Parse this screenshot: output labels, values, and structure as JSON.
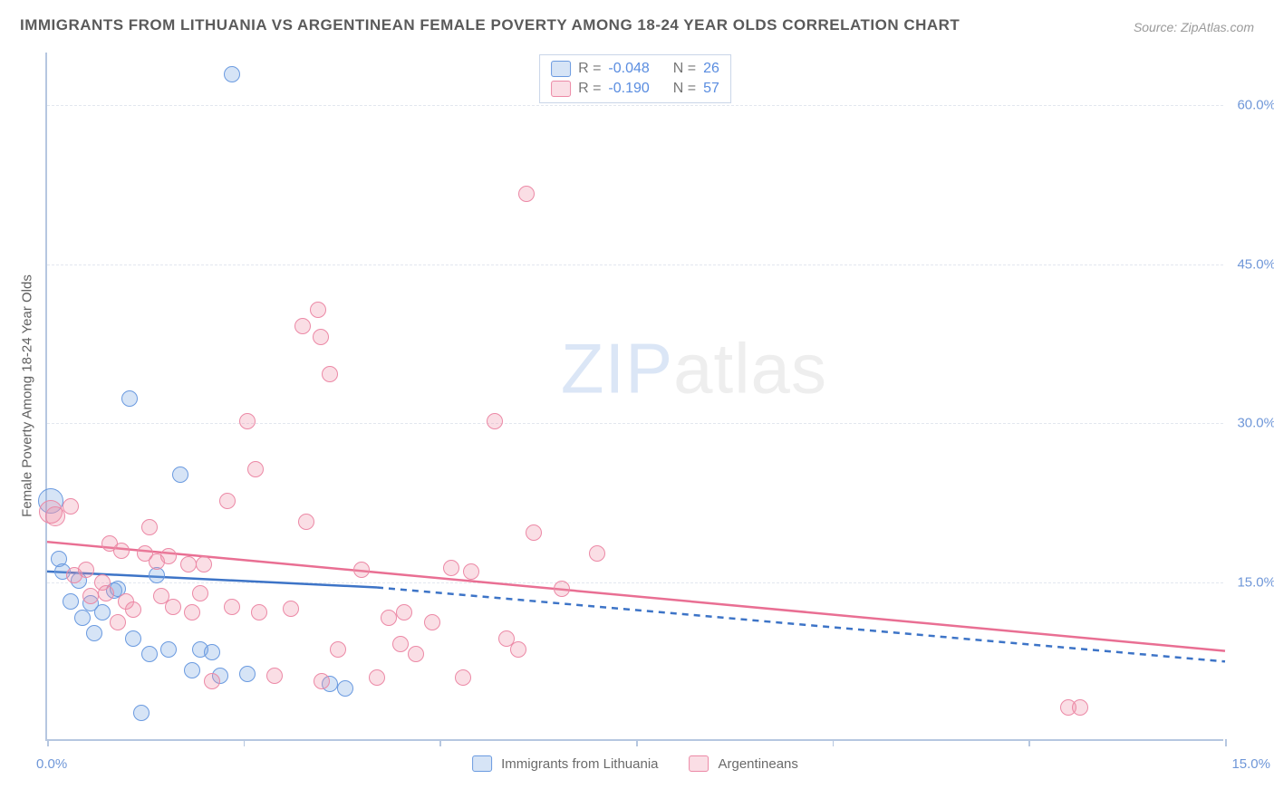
{
  "title": "IMMIGRANTS FROM LITHUANIA VS ARGENTINEAN FEMALE POVERTY AMONG 18-24 YEAR OLDS CORRELATION CHART",
  "source": "Source: ZipAtlas.com",
  "y_axis_title": "Female Poverty Among 18-24 Year Olds",
  "watermark_zip": "ZIP",
  "watermark_atlas": "atlas",
  "chart": {
    "type": "scatter",
    "background_color": "#ffffff",
    "axis_color": "#b6c7e0",
    "grid_color": "#e2e7ef",
    "tick_label_color": "#6f97d8",
    "xlim": [
      0,
      15
    ],
    "ylim": [
      0,
      65
    ],
    "x_ticks": [
      0,
      2.5,
      5,
      7.5,
      10,
      12.5,
      15
    ],
    "x_tick_labels": {
      "0": "0.0%",
      "15": "15.0%"
    },
    "y_gridlines": [
      15,
      30,
      45,
      60
    ],
    "y_tick_labels": {
      "15": "15.0%",
      "30": "30.0%",
      "45": "45.0%",
      "60": "60.0%"
    },
    "point_radius": 9,
    "point_stroke_width": 1.5,
    "point_fill_opacity": 0.25,
    "series": [
      {
        "name": "Immigrants from Lithuania",
        "color_fill": "rgba(120,165,225,0.30)",
        "color_stroke": "#6a9ae0",
        "trend_color": "#3d74c7",
        "R": "-0.048",
        "N": "26",
        "trend": {
          "x1": 0,
          "y1": 16.0,
          "x2": 4.2,
          "y2": 14.5,
          "dash_to_x": 15,
          "dash_to_y": 7.5
        },
        "points": [
          {
            "x": 0.05,
            "y": 22.5,
            "r": 14
          },
          {
            "x": 0.15,
            "y": 17.0
          },
          {
            "x": 0.2,
            "y": 15.8
          },
          {
            "x": 0.4,
            "y": 15.0
          },
          {
            "x": 0.45,
            "y": 11.5
          },
          {
            "x": 0.55,
            "y": 12.8
          },
          {
            "x": 0.6,
            "y": 10.0
          },
          {
            "x": 0.85,
            "y": 14.0
          },
          {
            "x": 0.9,
            "y": 14.2
          },
          {
            "x": 1.05,
            "y": 32.2
          },
          {
            "x": 1.1,
            "y": 9.5
          },
          {
            "x": 1.3,
            "y": 8.0
          },
          {
            "x": 1.4,
            "y": 15.5
          },
          {
            "x": 1.55,
            "y": 8.5
          },
          {
            "x": 1.7,
            "y": 25.0
          },
          {
            "x": 1.85,
            "y": 6.5
          },
          {
            "x": 1.95,
            "y": 8.5
          },
          {
            "x": 2.1,
            "y": 8.2
          },
          {
            "x": 2.2,
            "y": 6.0
          },
          {
            "x": 2.35,
            "y": 62.8
          },
          {
            "x": 1.2,
            "y": 2.5
          },
          {
            "x": 0.3,
            "y": 13.0
          },
          {
            "x": 0.7,
            "y": 12.0
          },
          {
            "x": 3.6,
            "y": 5.2
          },
          {
            "x": 3.8,
            "y": 4.8
          },
          {
            "x": 2.55,
            "y": 6.2
          }
        ]
      },
      {
        "name": "Argentineans",
        "color_fill": "rgba(240,145,170,0.30)",
        "color_stroke": "#ec89a6",
        "trend_color": "#e96f93",
        "R": "-0.190",
        "N": "57",
        "trend": {
          "x1": 0,
          "y1": 18.8,
          "x2": 15,
          "y2": 8.5
        },
        "points": [
          {
            "x": 0.05,
            "y": 21.5,
            "r": 13
          },
          {
            "x": 0.1,
            "y": 21.0,
            "r": 11
          },
          {
            "x": 0.3,
            "y": 22.0
          },
          {
            "x": 0.35,
            "y": 15.5
          },
          {
            "x": 0.5,
            "y": 16.0
          },
          {
            "x": 0.55,
            "y": 13.5
          },
          {
            "x": 0.7,
            "y": 14.8
          },
          {
            "x": 0.75,
            "y": 13.8
          },
          {
            "x": 0.8,
            "y": 18.5
          },
          {
            "x": 0.95,
            "y": 17.8
          },
          {
            "x": 1.0,
            "y": 13.0
          },
          {
            "x": 1.1,
            "y": 12.2
          },
          {
            "x": 1.25,
            "y": 17.5
          },
          {
            "x": 1.3,
            "y": 20.0
          },
          {
            "x": 1.4,
            "y": 16.8
          },
          {
            "x": 1.55,
            "y": 17.3
          },
          {
            "x": 1.6,
            "y": 12.5
          },
          {
            "x": 1.8,
            "y": 16.5
          },
          {
            "x": 1.85,
            "y": 12.0
          },
          {
            "x": 2.0,
            "y": 16.5
          },
          {
            "x": 2.1,
            "y": 5.5
          },
          {
            "x": 2.3,
            "y": 22.5
          },
          {
            "x": 2.35,
            "y": 12.5
          },
          {
            "x": 2.55,
            "y": 30.0
          },
          {
            "x": 2.65,
            "y": 25.5
          },
          {
            "x": 2.7,
            "y": 12.0
          },
          {
            "x": 2.9,
            "y": 6.0
          },
          {
            "x": 3.1,
            "y": 12.3
          },
          {
            "x": 3.25,
            "y": 39.0
          },
          {
            "x": 3.3,
            "y": 20.5
          },
          {
            "x": 3.45,
            "y": 40.5
          },
          {
            "x": 3.48,
            "y": 38.0
          },
          {
            "x": 3.5,
            "y": 5.5
          },
          {
            "x": 3.6,
            "y": 34.5
          },
          {
            "x": 3.7,
            "y": 8.5
          },
          {
            "x": 4.0,
            "y": 16.0
          },
          {
            "x": 4.2,
            "y": 5.8
          },
          {
            "x": 4.35,
            "y": 11.5
          },
          {
            "x": 4.5,
            "y": 9.0
          },
          {
            "x": 4.55,
            "y": 12.0
          },
          {
            "x": 4.7,
            "y": 8.0
          },
          {
            "x": 4.9,
            "y": 11.0
          },
          {
            "x": 5.15,
            "y": 16.2
          },
          {
            "x": 5.3,
            "y": 5.8
          },
          {
            "x": 5.4,
            "y": 15.8
          },
          {
            "x": 5.7,
            "y": 30.0
          },
          {
            "x": 5.85,
            "y": 9.5
          },
          {
            "x": 6.0,
            "y": 8.5
          },
          {
            "x": 6.1,
            "y": 51.5
          },
          {
            "x": 6.2,
            "y": 19.5
          },
          {
            "x": 6.55,
            "y": 14.2
          },
          {
            "x": 7.0,
            "y": 17.5
          },
          {
            "x": 13.0,
            "y": 3.0
          },
          {
            "x": 13.15,
            "y": 3.0
          },
          {
            "x": 0.9,
            "y": 11.0
          },
          {
            "x": 1.45,
            "y": 13.5
          },
          {
            "x": 1.95,
            "y": 13.8
          }
        ]
      }
    ]
  },
  "legend_top": {
    "r_label": "R =",
    "n_label": "N ="
  },
  "legend_bottom": [
    {
      "label": "Immigrants from Lithuania"
    },
    {
      "label": "Argentineans"
    }
  ]
}
